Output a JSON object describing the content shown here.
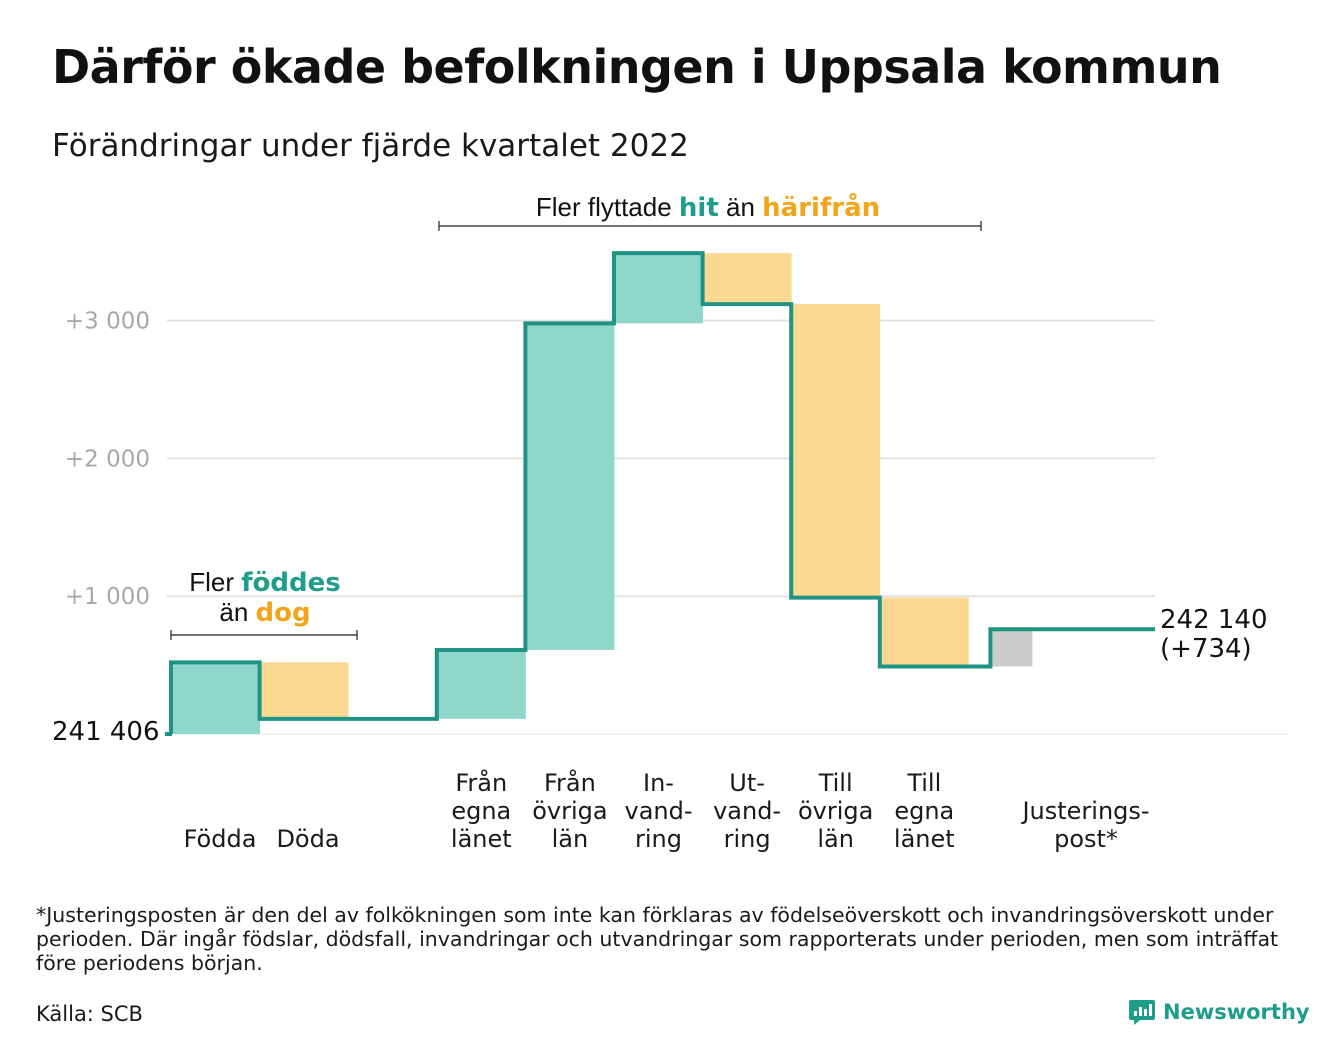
{
  "title": "Därför ökade befolkningen i Uppsala kommun",
  "subtitle": "Förändringar under fjärde kvartalet 2022",
  "footnote": "*Justeringsposten är den del av folkökningen som inte kan förklaras av födelseöverskott och invandringsöverskott under perioden. Där ingår födslar, dödsfall, invandringar och utvandringar som rapporterats under perioden, men som inträffat före periodens början.",
  "source": "Källa: SCB",
  "brand": {
    "name": "Newsworthy",
    "color": "#1e9d8b"
  },
  "colors": {
    "increase": "#8fd6cb",
    "decrease": "#fbd990",
    "adjustment": "#cccccc",
    "line": "#1f9384",
    "highlight_teal": "#1e9d8b",
    "highlight_orange": "#f2a51a",
    "grid": "#e3e3e3"
  },
  "annotations": {
    "births": {
      "line1_pre": "Fler ",
      "line1_hl": "föddes",
      "line2_pre": "än ",
      "line2_hl": "dog"
    },
    "migration": {
      "pre": "Fler flyttade ",
      "hl1": "hit",
      "mid": " än ",
      "hl2": "härifrån"
    }
  },
  "chart_data": {
    "type": "waterfall",
    "baseline": 241406,
    "baseline_label": "241 406",
    "end_value": 242140,
    "end_label_line1": "242 140",
    "end_label_line2": "(+734)",
    "y_axis": {
      "ticks": [
        1000,
        2000,
        3000
      ],
      "tick_labels": [
        "+1 000",
        "+2 000",
        "+3 000"
      ],
      "unit": "change from baseline",
      "range": [
        0,
        3600
      ]
    },
    "grid": true,
    "steps": [
      {
        "category": "Födda",
        "label_lines": [
          "Födda"
        ],
        "change": 520,
        "kind": "increase"
      },
      {
        "category": "Döda",
        "label_lines": [
          "Döda"
        ],
        "change": -410,
        "kind": "decrease"
      },
      {
        "category": "",
        "label_lines": [],
        "change": 0,
        "kind": "gap"
      },
      {
        "category": "Från egna länet",
        "label_lines": [
          "Från",
          "egna",
          "länet"
        ],
        "change": 500,
        "kind": "increase"
      },
      {
        "category": "Från övriga län",
        "label_lines": [
          "Från",
          "övriga",
          "län"
        ],
        "change": 2370,
        "kind": "increase"
      },
      {
        "category": "In-vandring",
        "label_lines": [
          "In-",
          "vand-",
          "ring"
        ],
        "change": 510,
        "kind": "increase"
      },
      {
        "category": "Ut-vandring",
        "label_lines": [
          "Ut-",
          "vand-",
          "ring"
        ],
        "change": -370,
        "kind": "decrease"
      },
      {
        "category": "Till övriga län",
        "label_lines": [
          "Till",
          "övriga",
          "län"
        ],
        "change": -2130,
        "kind": "decrease"
      },
      {
        "category": "Till egna länet",
        "label_lines": [
          "Till",
          "egna",
          "länet"
        ],
        "change": -500,
        "kind": "decrease"
      },
      {
        "category": "Justeringspost*",
        "label_lines": [
          "Justerings-",
          "post*"
        ],
        "change": 270,
        "kind": "adjustment"
      }
    ]
  }
}
